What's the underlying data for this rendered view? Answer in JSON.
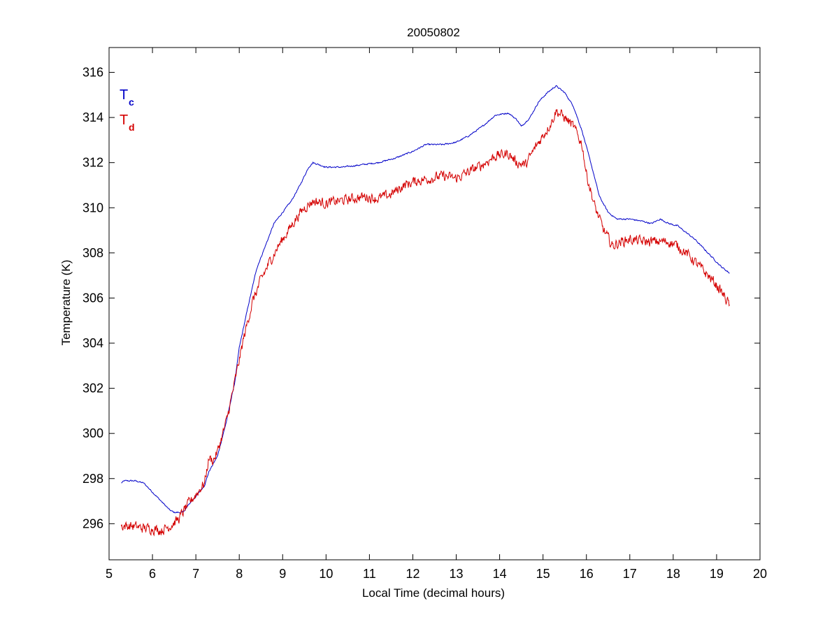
{
  "chart_data": {
    "type": "line",
    "title": "20050802",
    "xlabel": "Local Time (decimal hours)",
    "ylabel": "Temperature (K)",
    "xlim": [
      5,
      20
    ],
    "ylim": [
      294.4,
      317.1
    ],
    "xticks": [
      5,
      6,
      7,
      8,
      9,
      10,
      11,
      12,
      13,
      14,
      15,
      16,
      17,
      18,
      19,
      20
    ],
    "yticks": [
      296,
      298,
      300,
      302,
      304,
      306,
      308,
      310,
      312,
      314,
      316
    ],
    "grid": false,
    "legend_position": "top-left",
    "legend": [
      {
        "main": "T",
        "sub": "c",
        "color": "#0000c8"
      },
      {
        "main": "T",
        "sub": "d",
        "color": "#d40000"
      }
    ],
    "series": [
      {
        "color": "#0000c8",
        "jitter": 0.05,
        "points": [
          [
            5.28,
            297.8
          ],
          [
            5.35,
            297.9
          ],
          [
            5.6,
            297.9
          ],
          [
            5.8,
            297.8
          ],
          [
            6.0,
            297.4
          ],
          [
            6.2,
            297.0
          ],
          [
            6.4,
            296.6
          ],
          [
            6.5,
            296.5
          ],
          [
            6.7,
            296.5
          ],
          [
            6.9,
            297.0
          ],
          [
            7.0,
            297.2
          ],
          [
            7.2,
            297.7
          ],
          [
            7.3,
            298.3
          ],
          [
            7.5,
            299.0
          ],
          [
            7.7,
            300.5
          ],
          [
            7.9,
            302.3
          ],
          [
            8.0,
            303.8
          ],
          [
            8.2,
            305.6
          ],
          [
            8.4,
            307.3
          ],
          [
            8.6,
            308.3
          ],
          [
            8.8,
            309.3
          ],
          [
            9.0,
            309.8
          ],
          [
            9.2,
            310.3
          ],
          [
            9.4,
            311.0
          ],
          [
            9.6,
            311.8
          ],
          [
            9.7,
            312.0
          ],
          [
            9.85,
            311.9
          ],
          [
            10.0,
            311.8
          ],
          [
            10.4,
            311.8
          ],
          [
            10.8,
            311.9
          ],
          [
            11.2,
            312.0
          ],
          [
            11.6,
            312.2
          ],
          [
            12.0,
            312.5
          ],
          [
            12.3,
            312.8
          ],
          [
            12.7,
            312.8
          ],
          [
            13.0,
            312.9
          ],
          [
            13.3,
            313.2
          ],
          [
            13.6,
            313.6
          ],
          [
            13.9,
            314.1
          ],
          [
            14.2,
            314.2
          ],
          [
            14.4,
            313.9
          ],
          [
            14.5,
            313.6
          ],
          [
            14.7,
            314.0
          ],
          [
            14.9,
            314.7
          ],
          [
            15.1,
            315.1
          ],
          [
            15.3,
            315.4
          ],
          [
            15.5,
            315.1
          ],
          [
            15.7,
            314.5
          ],
          [
            15.9,
            313.4
          ],
          [
            16.1,
            312.0
          ],
          [
            16.3,
            310.5
          ],
          [
            16.5,
            309.8
          ],
          [
            16.7,
            309.5
          ],
          [
            17.0,
            309.5
          ],
          [
            17.3,
            309.4
          ],
          [
            17.5,
            309.3
          ],
          [
            17.7,
            309.5
          ],
          [
            17.9,
            309.3
          ],
          [
            18.1,
            309.2
          ],
          [
            18.3,
            308.9
          ],
          [
            18.5,
            308.6
          ],
          [
            18.7,
            308.2
          ],
          [
            18.9,
            307.8
          ],
          [
            19.1,
            307.4
          ],
          [
            19.3,
            307.1
          ]
        ]
      },
      {
        "color": "#d40000",
        "jitter": 0.35,
        "points": [
          [
            5.28,
            295.9
          ],
          [
            5.5,
            295.9
          ],
          [
            5.8,
            295.8
          ],
          [
            6.0,
            295.8
          ],
          [
            6.2,
            295.7
          ],
          [
            6.4,
            295.9
          ],
          [
            6.6,
            296.2
          ],
          [
            6.8,
            296.8
          ],
          [
            7.0,
            297.3
          ],
          [
            7.2,
            297.8
          ],
          [
            7.3,
            298.9
          ],
          [
            7.4,
            298.8
          ],
          [
            7.5,
            299.2
          ],
          [
            7.7,
            300.5
          ],
          [
            7.9,
            302.3
          ],
          [
            8.1,
            304.2
          ],
          [
            8.3,
            305.8
          ],
          [
            8.5,
            306.8
          ],
          [
            8.7,
            307.6
          ],
          [
            8.9,
            308.3
          ],
          [
            9.1,
            308.9
          ],
          [
            9.3,
            309.5
          ],
          [
            9.5,
            310.0
          ],
          [
            9.7,
            310.3
          ],
          [
            10.0,
            310.2
          ],
          [
            10.3,
            310.3
          ],
          [
            10.6,
            310.4
          ],
          [
            10.9,
            310.5
          ],
          [
            11.2,
            310.4
          ],
          [
            11.5,
            310.6
          ],
          [
            11.8,
            311.0
          ],
          [
            12.1,
            311.2
          ],
          [
            12.4,
            311.3
          ],
          [
            12.7,
            311.4
          ],
          [
            13.0,
            311.3
          ],
          [
            13.3,
            311.6
          ],
          [
            13.6,
            311.9
          ],
          [
            13.9,
            312.3
          ],
          [
            14.2,
            312.4
          ],
          [
            14.4,
            312.0
          ],
          [
            14.6,
            311.9
          ],
          [
            14.8,
            312.6
          ],
          [
            15.0,
            313.2
          ],
          [
            15.2,
            313.8
          ],
          [
            15.3,
            314.3
          ],
          [
            15.5,
            314.0
          ],
          [
            15.7,
            313.6
          ],
          [
            15.9,
            312.8
          ],
          [
            16.0,
            311.5
          ],
          [
            16.2,
            310.0
          ],
          [
            16.4,
            309.0
          ],
          [
            16.6,
            308.3
          ],
          [
            16.8,
            308.5
          ],
          [
            17.0,
            308.6
          ],
          [
            17.3,
            308.5
          ],
          [
            17.6,
            308.5
          ],
          [
            17.9,
            308.5
          ],
          [
            18.1,
            308.3
          ],
          [
            18.3,
            308.0
          ],
          [
            18.5,
            307.6
          ],
          [
            18.7,
            307.2
          ],
          [
            18.9,
            306.8
          ],
          [
            19.1,
            306.3
          ],
          [
            19.3,
            305.7
          ]
        ]
      }
    ]
  }
}
